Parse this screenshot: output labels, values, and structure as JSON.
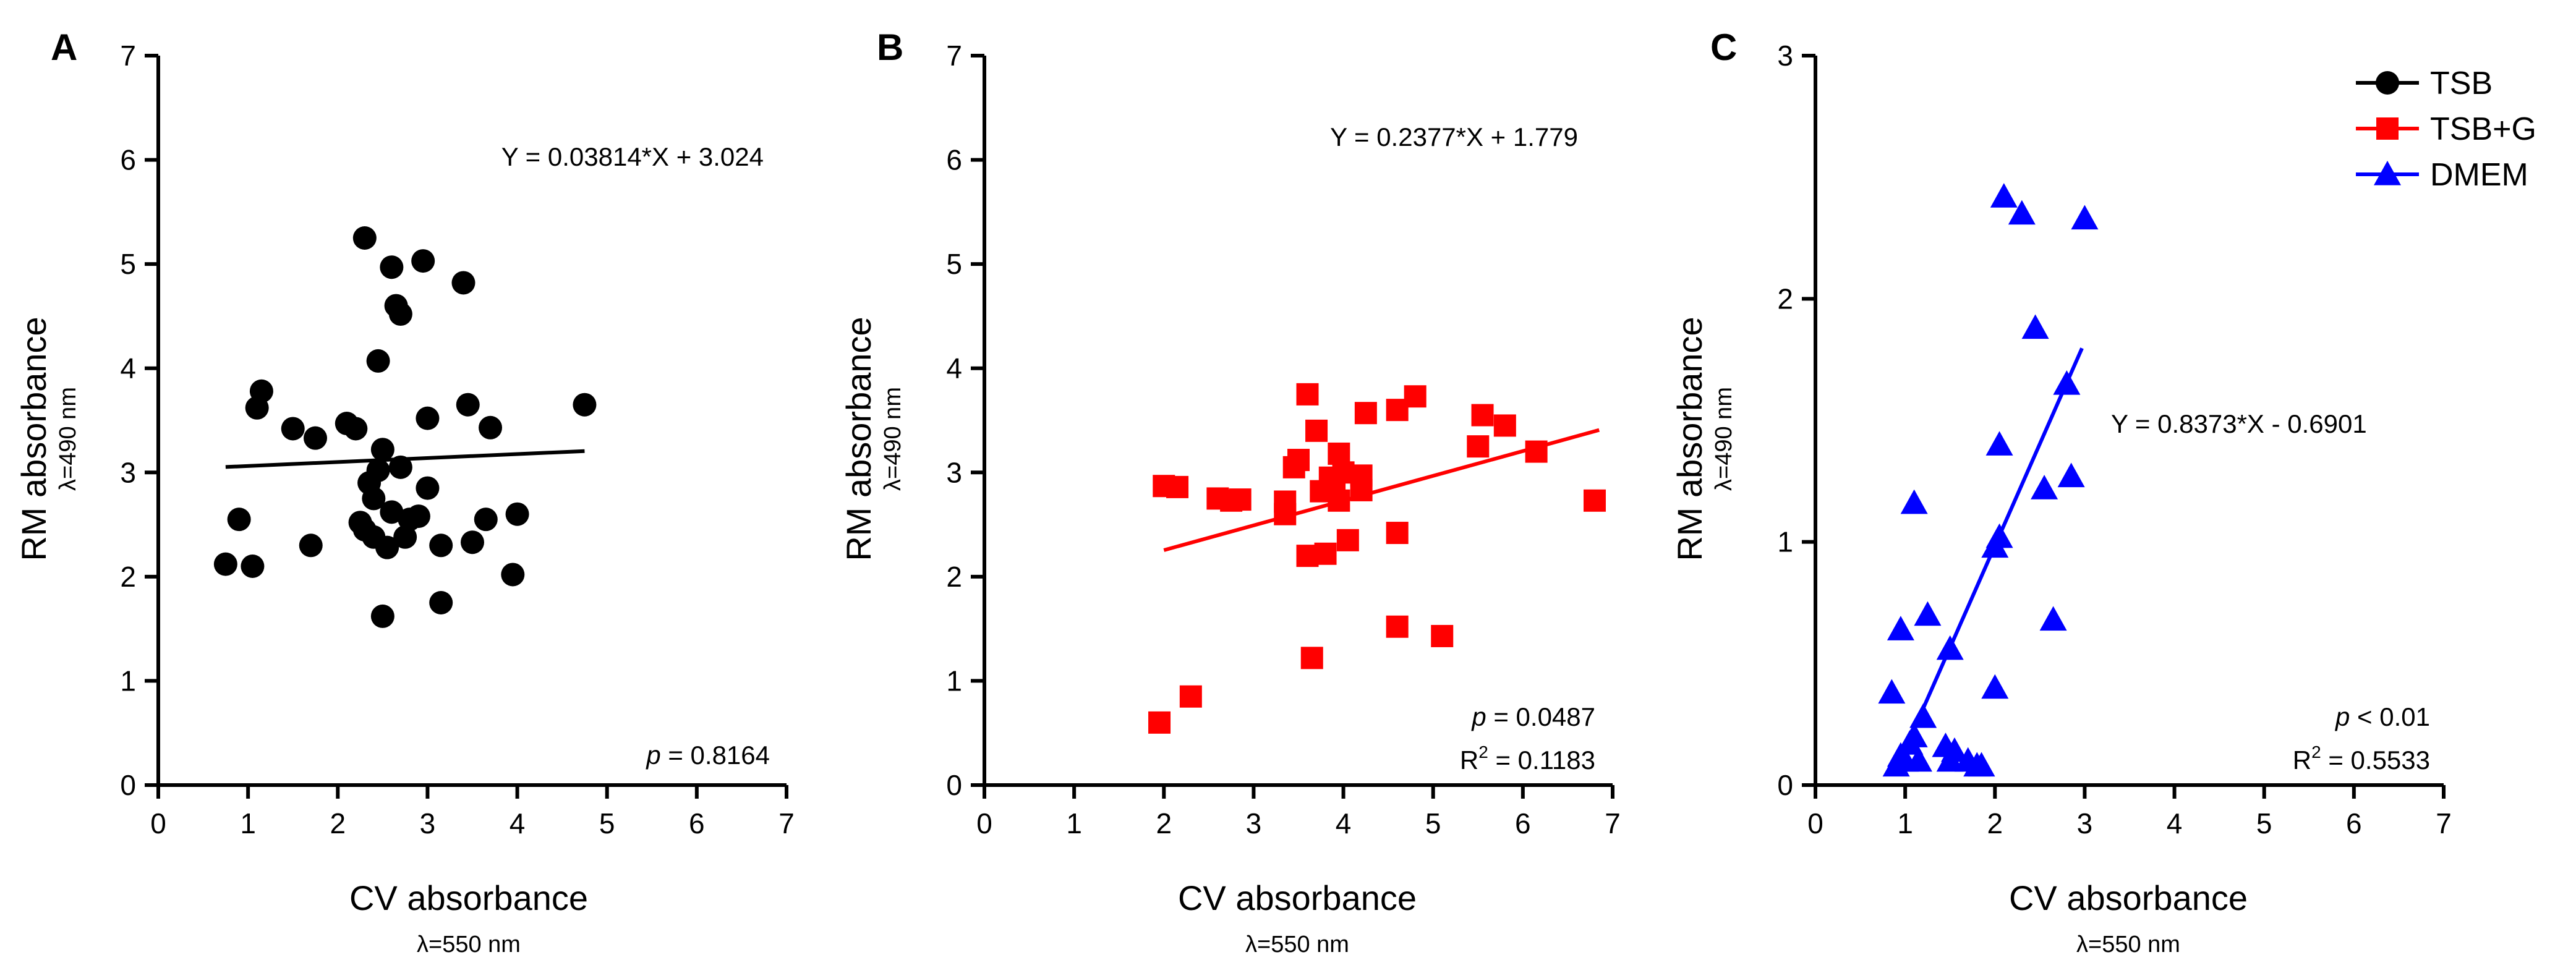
{
  "chart_data": [
    {
      "type": "scatter",
      "panel": "A",
      "series_name": "TSB",
      "color": "#000000",
      "marker": "circle",
      "xlabel": "CV absorbance",
      "xlabel_sub": "λ=550 nm",
      "ylabel": "RM absorbance",
      "ylabel_sub": "λ=490 nm",
      "xlim": [
        0,
        7
      ],
      "ylim": [
        0,
        7
      ],
      "xticks": [
        0,
        1,
        2,
        3,
        4,
        5,
        6,
        7
      ],
      "yticks": [
        0,
        1,
        2,
        3,
        4,
        5,
        6,
        7
      ],
      "equation": "Y = 0.03814*X + 3.024",
      "slope": 0.03814,
      "intercept": 3.024,
      "fit_x": [
        0.75,
        4.75
      ],
      "p_label": "p",
      "p_value": " = 0.8164",
      "r2_value": "",
      "points": [
        [
          0.75,
          2.12
        ],
        [
          0.9,
          2.55
        ],
        [
          1.05,
          2.1
        ],
        [
          1.1,
          3.62
        ],
        [
          1.15,
          3.78
        ],
        [
          1.5,
          3.42
        ],
        [
          1.7,
          2.3
        ],
        [
          1.75,
          3.33
        ],
        [
          2.1,
          3.47
        ],
        [
          2.2,
          3.42
        ],
        [
          2.25,
          2.52
        ],
        [
          2.3,
          2.45
        ],
        [
          2.3,
          5.25
        ],
        [
          2.35,
          2.9
        ],
        [
          2.4,
          2.75
        ],
        [
          2.4,
          2.38
        ],
        [
          2.45,
          3.02
        ],
        [
          2.45,
          4.07
        ],
        [
          2.5,
          3.22
        ],
        [
          2.5,
          1.62
        ],
        [
          2.55,
          2.28
        ],
        [
          2.6,
          2.62
        ],
        [
          2.6,
          4.97
        ],
        [
          2.65,
          4.6
        ],
        [
          2.7,
          4.52
        ],
        [
          2.7,
          3.05
        ],
        [
          2.75,
          2.38
        ],
        [
          2.8,
          2.55
        ],
        [
          2.9,
          2.58
        ],
        [
          2.95,
          5.03
        ],
        [
          3.0,
          2.85
        ],
        [
          3.0,
          3.52
        ],
        [
          3.15,
          1.75
        ],
        [
          3.15,
          2.3
        ],
        [
          3.4,
          4.82
        ],
        [
          3.45,
          3.65
        ],
        [
          3.5,
          2.33
        ],
        [
          3.65,
          2.55
        ],
        [
          3.7,
          3.43
        ],
        [
          3.95,
          2.02
        ],
        [
          4.0,
          2.6
        ],
        [
          4.75,
          3.65
        ]
      ]
    },
    {
      "type": "scatter",
      "panel": "B",
      "series_name": "TSB+G",
      "color": "#ff0000",
      "marker": "square",
      "xlabel": "CV absorbance",
      "xlabel_sub": "λ=550 nm",
      "ylabel": "RM absorbance",
      "ylabel_sub": "λ=490 nm",
      "xlim": [
        0,
        7
      ],
      "ylim": [
        0,
        7
      ],
      "xticks": [
        0,
        1,
        2,
        3,
        4,
        5,
        6,
        7
      ],
      "yticks": [
        0,
        1,
        2,
        3,
        4,
        5,
        6,
        7
      ],
      "equation": "Y = 0.2377*X + 1.779",
      "slope": 0.2377,
      "intercept": 1.779,
      "fit_x": [
        2.0,
        6.85
      ],
      "p_label": "p",
      "p_value": " = 0.0487",
      "r2_value": " = 0.1183",
      "points": [
        [
          1.95,
          0.6
        ],
        [
          2.0,
          2.87
        ],
        [
          2.15,
          2.86
        ],
        [
          2.3,
          0.85
        ],
        [
          2.6,
          2.75
        ],
        [
          2.75,
          2.73
        ],
        [
          2.85,
          2.74
        ],
        [
          3.35,
          2.72
        ],
        [
          3.35,
          2.6
        ],
        [
          3.45,
          3.05
        ],
        [
          3.5,
          3.12
        ],
        [
          3.6,
          3.75
        ],
        [
          3.6,
          2.2
        ],
        [
          3.65,
          1.22
        ],
        [
          3.7,
          3.4
        ],
        [
          3.75,
          2.82
        ],
        [
          3.8,
          2.22
        ],
        [
          3.85,
          2.95
        ],
        [
          3.9,
          2.83
        ],
        [
          3.95,
          3.18
        ],
        [
          3.95,
          2.73
        ],
        [
          4.0,
          3.0
        ],
        [
          4.05,
          2.35
        ],
        [
          4.2,
          2.83
        ],
        [
          4.2,
          2.97
        ],
        [
          4.25,
          3.57
        ],
        [
          4.6,
          3.6
        ],
        [
          4.6,
          2.42
        ],
        [
          4.6,
          1.52
        ],
        [
          4.8,
          3.73
        ],
        [
          5.1,
          1.43
        ],
        [
          5.5,
          3.25
        ],
        [
          5.55,
          3.55
        ],
        [
          5.8,
          3.45
        ],
        [
          6.15,
          3.2
        ],
        [
          6.8,
          2.73
        ]
      ]
    },
    {
      "type": "scatter",
      "panel": "C",
      "series_name": "DMEM",
      "color": "#0000ff",
      "marker": "triangle",
      "xlabel": "CV absorbance",
      "xlabel_sub": "λ=550 nm",
      "ylabel": "RM absorbance",
      "ylabel_sub": "λ=490 nm",
      "xlim": [
        0,
        7
      ],
      "ylim": [
        0,
        3
      ],
      "xticks": [
        0,
        1,
        2,
        3,
        4,
        5,
        6,
        7
      ],
      "yticks": [
        0,
        1,
        2,
        3
      ],
      "equation": "Y = 0.8373*X - 0.6901",
      "slope": 0.8373,
      "intercept": -0.6901,
      "fit_x": [
        0.89,
        2.97
      ],
      "p_label": "p",
      "p_value": " < 0.01",
      "r2_value": " = 0.5533",
      "points": [
        [
          0.85,
          0.38
        ],
        [
          0.9,
          0.08
        ],
        [
          0.95,
          0.12
        ],
        [
          0.95,
          0.64
        ],
        [
          1.0,
          0.1
        ],
        [
          1.05,
          0.17
        ],
        [
          1.1,
          1.16
        ],
        [
          1.1,
          0.2
        ],
        [
          1.15,
          0.1
        ],
        [
          1.2,
          0.28
        ],
        [
          1.25,
          0.7
        ],
        [
          1.45,
          0.16
        ],
        [
          1.5,
          0.1
        ],
        [
          1.5,
          0.56
        ],
        [
          1.55,
          0.14
        ],
        [
          1.7,
          0.1
        ],
        [
          1.8,
          0.08
        ],
        [
          1.85,
          0.08
        ],
        [
          2.0,
          0.98
        ],
        [
          2.0,
          0.4
        ],
        [
          2.05,
          1.4
        ],
        [
          2.05,
          1.02
        ],
        [
          2.1,
          2.42
        ],
        [
          2.3,
          2.35
        ],
        [
          2.45,
          1.88
        ],
        [
          2.55,
          1.22
        ],
        [
          2.65,
          0.68
        ],
        [
          2.8,
          1.65
        ],
        [
          2.85,
          1.27
        ],
        [
          3.0,
          2.33
        ]
      ]
    }
  ],
  "panel_labels": [
    "A",
    "B",
    "C"
  ],
  "r2_label": "R",
  "r2_sup": "2",
  "legend": [
    {
      "label": "TSB",
      "color": "#000000",
      "marker": "circle"
    },
    {
      "label": "TSB+G",
      "color": "#ff0000",
      "marker": "square"
    },
    {
      "label": "DMEM",
      "color": "#0000ff",
      "marker": "triangle"
    }
  ]
}
